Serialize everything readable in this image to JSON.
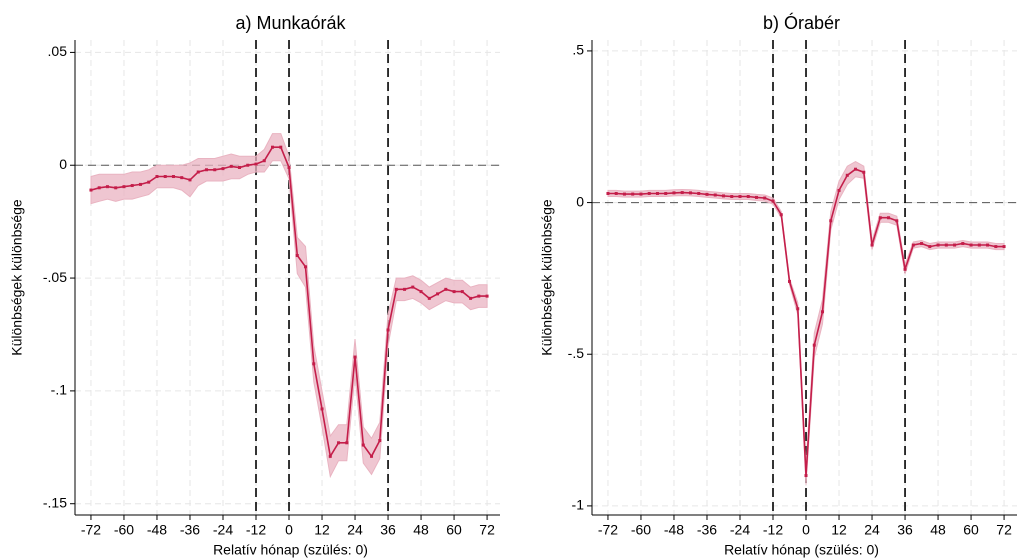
{
  "chart_data": [
    {
      "type": "line",
      "title": "a) Munkaórák",
      "xlabel": "Relatív hónap (szülés: 0)",
      "ylabel": "Különbségek különbsége",
      "x": [
        -72,
        -69,
        -66,
        -63,
        -60,
        -57,
        -54,
        -51,
        -48,
        -45,
        -42,
        -39,
        -36,
        -33,
        -30,
        -27,
        -24,
        -21,
        -18,
        -15,
        -12,
        -9,
        -6,
        -3,
        0,
        3,
        6,
        9,
        12,
        15,
        18,
        21,
        24,
        27,
        30,
        33,
        36,
        39,
        42,
        45,
        48,
        51,
        54,
        57,
        60,
        63,
        66,
        69,
        72
      ],
      "series": [
        {
          "color": "#c41e4a",
          "band_color": "#e9b3c1",
          "values": [
            -0.011,
            -0.01,
            -0.0095,
            -0.01,
            -0.0095,
            -0.009,
            -0.0085,
            -0.0075,
            -0.005,
            -0.005,
            -0.005,
            -0.0055,
            -0.0065,
            -0.003,
            -0.002,
            -0.002,
            -0.0015,
            -0.0005,
            -0.001,
            0.0,
            0.0005,
            0.002,
            0.008,
            0.008,
            -0.001,
            -0.04,
            -0.045,
            -0.088,
            -0.108,
            -0.129,
            -0.123,
            -0.123,
            -0.085,
            -0.124,
            -0.129,
            -0.122,
            -0.073,
            -0.055,
            -0.055,
            -0.054,
            -0.056,
            -0.059,
            -0.057,
            -0.055,
            -0.056,
            -0.056,
            -0.059,
            -0.058,
            -0.058
          ],
          "upper": [
            -0.005,
            -0.004,
            -0.004,
            -0.004,
            -0.004,
            -0.003,
            -0.003,
            -0.002,
            0.0,
            0.0,
            0.0,
            0.0,
            0.001,
            0.003,
            0.003,
            0.003,
            0.004,
            0.005,
            0.004,
            0.004,
            0.004,
            0.007,
            0.014,
            0.014,
            0.004,
            -0.032,
            -0.036,
            -0.08,
            -0.1,
            -0.12,
            -0.115,
            -0.115,
            -0.077,
            -0.116,
            -0.121,
            -0.114,
            -0.066,
            -0.05,
            -0.05,
            -0.049,
            -0.051,
            -0.054,
            -0.052,
            -0.05,
            -0.051,
            -0.051,
            -0.054,
            -0.053,
            -0.053
          ],
          "lower": [
            -0.017,
            -0.016,
            -0.015,
            -0.016,
            -0.015,
            -0.015,
            -0.014,
            -0.013,
            -0.01,
            -0.01,
            -0.01,
            -0.011,
            -0.014,
            -0.009,
            -0.007,
            -0.007,
            -0.007,
            -0.006,
            -0.006,
            -0.004,
            -0.003,
            -0.003,
            0.002,
            0.002,
            -0.006,
            -0.048,
            -0.054,
            -0.096,
            -0.116,
            -0.138,
            -0.131,
            -0.131,
            -0.093,
            -0.132,
            -0.137,
            -0.13,
            -0.08,
            -0.06,
            -0.06,
            -0.059,
            -0.061,
            -0.064,
            -0.062,
            -0.06,
            -0.061,
            -0.061,
            -0.064,
            -0.063,
            -0.063
          ]
        }
      ],
      "xlim": [
        -77.8,
        76.7
      ],
      "xticks": [
        -72,
        -60,
        -48,
        -36,
        -24,
        -12,
        0,
        12,
        24,
        36,
        48,
        60,
        72
      ],
      "ylim": [
        -0.155,
        0.0555
      ],
      "yticks": [
        {
          "value": 0.05,
          "label": ".05"
        },
        0,
        {
          "value": -0.05,
          "label": "-.05"
        },
        {
          "value": -0.1,
          "label": "-.1"
        },
        {
          "value": -0.15,
          "label": "-.15"
        }
      ],
      "vlines": [
        -12,
        0,
        36
      ],
      "hline": 0,
      "grid": true
    },
    {
      "type": "line",
      "title": "b) Órabér",
      "xlabel": "Relatív hónap (szülés: 0)",
      "ylabel": "Különbségek különbsége",
      "x": [
        -72,
        -69,
        -66,
        -63,
        -60,
        -57,
        -54,
        -51,
        -48,
        -45,
        -42,
        -39,
        -36,
        -33,
        -30,
        -27,
        -24,
        -21,
        -18,
        -15,
        -12,
        -9,
        -6,
        -3,
        0,
        3,
        6,
        9,
        12,
        15,
        18,
        21,
        24,
        27,
        30,
        33,
        36,
        39,
        42,
        45,
        48,
        51,
        54,
        57,
        60,
        63,
        66,
        69,
        72
      ],
      "series": [
        {
          "color": "#c41e4a",
          "band_color": "#e9b3c1",
          "values": [
            0.03,
            0.03,
            0.028,
            0.028,
            0.028,
            0.03,
            0.03,
            0.03,
            0.032,
            0.033,
            0.032,
            0.03,
            0.027,
            0.025,
            0.022,
            0.02,
            0.02,
            0.02,
            0.017,
            0.015,
            0.005,
            -0.04,
            -0.26,
            -0.35,
            -0.9,
            -0.47,
            -0.36,
            -0.06,
            0.04,
            0.09,
            0.11,
            0.1,
            -0.14,
            -0.05,
            -0.05,
            -0.06,
            -0.22,
            -0.14,
            -0.135,
            -0.145,
            -0.14,
            -0.14,
            -0.14,
            -0.135,
            -0.14,
            -0.14,
            -0.14,
            -0.145,
            -0.145
          ],
          "upper": [
            0.04,
            0.04,
            0.038,
            0.038,
            0.038,
            0.04,
            0.04,
            0.04,
            0.042,
            0.043,
            0.042,
            0.04,
            0.037,
            0.035,
            0.032,
            0.03,
            0.03,
            0.03,
            0.027,
            0.025,
            0.015,
            -0.03,
            -0.25,
            -0.33,
            -0.87,
            -0.43,
            -0.32,
            -0.03,
            0.07,
            0.12,
            0.135,
            0.12,
            -0.125,
            -0.035,
            -0.035,
            -0.045,
            -0.205,
            -0.13,
            -0.125,
            -0.135,
            -0.13,
            -0.13,
            -0.13,
            -0.125,
            -0.13,
            -0.13,
            -0.13,
            -0.135,
            -0.135
          ],
          "lower": [
            0.02,
            0.02,
            0.018,
            0.018,
            0.018,
            0.02,
            0.02,
            0.02,
            0.022,
            0.023,
            0.022,
            0.02,
            0.017,
            0.015,
            0.012,
            0.01,
            0.01,
            0.01,
            0.007,
            0.005,
            -0.005,
            -0.05,
            -0.27,
            -0.37,
            -0.93,
            -0.51,
            -0.4,
            -0.09,
            0.01,
            0.06,
            0.085,
            0.08,
            -0.155,
            -0.065,
            -0.065,
            -0.075,
            -0.235,
            -0.15,
            -0.145,
            -0.155,
            -0.15,
            -0.15,
            -0.15,
            -0.145,
            -0.15,
            -0.15,
            -0.15,
            -0.155,
            -0.155
          ]
        }
      ],
      "xlim": [
        -77.8,
        76.7
      ],
      "xticks": [
        -72,
        -60,
        -48,
        -36,
        -24,
        -12,
        0,
        12,
        24,
        36,
        48,
        60,
        72
      ],
      "ylim": [
        -1.03,
        0.536
      ],
      "yticks": [
        {
          "value": 0.5,
          "label": ".5"
        },
        0,
        {
          "value": -0.5,
          "label": "-.5"
        },
        -1
      ],
      "vlines": [
        -12,
        0,
        36
      ],
      "hline": 0,
      "grid": true
    }
  ]
}
